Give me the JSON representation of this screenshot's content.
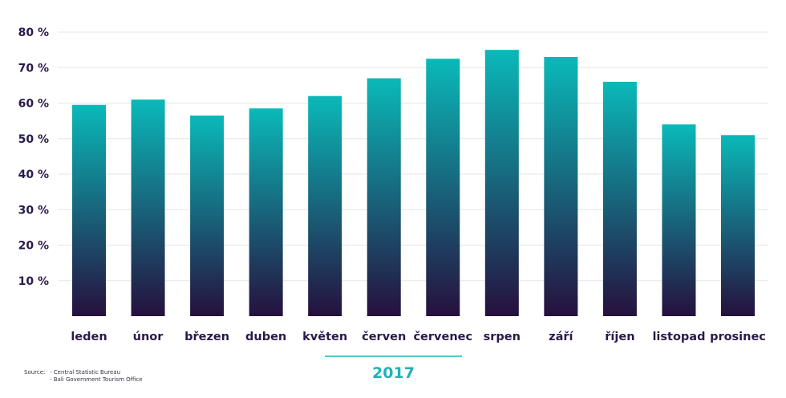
{
  "chart_data": {
    "type": "bar",
    "categories": [
      "leden",
      "únor",
      "březen",
      "duben",
      "květen",
      "červen",
      "červenec",
      "srpen",
      "září",
      "říjen",
      "listopad",
      "prosinec"
    ],
    "values": [
      59.5,
      61,
      56.5,
      58.5,
      62,
      67,
      72.5,
      75,
      73,
      66,
      54,
      51
    ],
    "yticks": [
      "10 %",
      "20 %",
      "30 %",
      "40 %",
      "50 %",
      "60 %",
      "70 %",
      "80 %"
    ],
    "ytick_values": [
      10,
      20,
      30,
      40,
      50,
      60,
      70,
      80
    ],
    "ylim": [
      0,
      80
    ],
    "xgroup_label": "2017",
    "grid": true,
    "colors": {
      "bar_top": "#0ab9b9",
      "bar_bottom": "#26103e",
      "accent": "#1fb3b8",
      "text": "#2a1a4a"
    }
  },
  "source": {
    "label": "Source:",
    "lines": [
      "- Central Statistic Bureau",
      "- Bali Government Tourism Office"
    ]
  }
}
